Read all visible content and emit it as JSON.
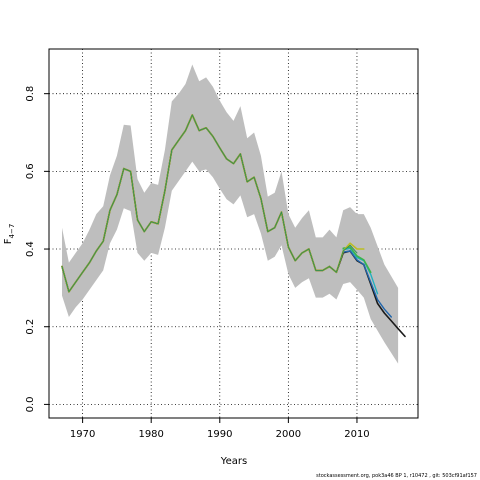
{
  "chart_data": {
    "type": "line",
    "xlabel": "Years",
    "ylabel_main": "F",
    "ylabel_sub": "4−7",
    "xlim": [
      1965.1,
      2018.9
    ],
    "ylim": [
      -0.035,
      0.915
    ],
    "xticks": [
      1970,
      1980,
      1990,
      2000,
      2010
    ],
    "yticks": [
      0.0,
      0.2,
      0.4,
      0.6,
      0.8
    ],
    "ytick_labels": [
      "0.0",
      "0.2",
      "0.4",
      "0.6",
      "0.8"
    ],
    "grid": true,
    "legend": "none",
    "years": [
      1967,
      1968,
      1969,
      1970,
      1971,
      1972,
      1973,
      1974,
      1975,
      1976,
      1977,
      1978,
      1979,
      1980,
      1981,
      1982,
      1983,
      1984,
      1985,
      1986,
      1987,
      1988,
      1989,
      1990,
      1991,
      1992,
      1993,
      1994,
      1995,
      1996,
      1997,
      1998,
      1999,
      2000,
      2001,
      2002,
      2003,
      2004,
      2005,
      2006,
      2007,
      2008,
      2009,
      2010,
      2011
    ],
    "estimate": [
      0.355,
      0.29,
      0.315,
      0.34,
      0.365,
      0.395,
      0.42,
      0.5,
      0.54,
      0.607,
      0.6,
      0.475,
      0.445,
      0.47,
      0.465,
      0.55,
      0.655,
      0.68,
      0.705,
      0.745,
      0.705,
      0.712,
      0.69,
      0.66,
      0.632,
      0.62,
      0.645,
      0.573,
      0.585,
      0.53,
      0.445,
      0.455,
      0.495,
      0.405,
      0.37,
      0.39,
      0.4,
      0.345,
      0.345,
      0.355,
      0.34,
      0.39,
      0.4,
      0.37,
      0.36
    ],
    "upper": [
      0.455,
      0.365,
      0.39,
      0.415,
      0.45,
      0.49,
      0.51,
      0.59,
      0.64,
      0.72,
      0.718,
      0.58,
      0.545,
      0.57,
      0.565,
      0.655,
      0.78,
      0.8,
      0.825,
      0.875,
      0.832,
      0.842,
      0.818,
      0.782,
      0.752,
      0.73,
      0.768,
      0.685,
      0.7,
      0.64,
      0.535,
      0.545,
      0.6,
      0.49,
      0.455,
      0.48,
      0.5,
      0.43,
      0.43,
      0.45,
      0.43,
      0.5,
      0.508,
      0.49,
      0.49
    ],
    "lower": [
      0.28,
      0.225,
      0.25,
      0.27,
      0.295,
      0.32,
      0.345,
      0.415,
      0.45,
      0.505,
      0.498,
      0.39,
      0.37,
      0.39,
      0.385,
      0.455,
      0.55,
      0.575,
      0.6,
      0.625,
      0.6,
      0.605,
      0.585,
      0.555,
      0.528,
      0.515,
      0.538,
      0.482,
      0.49,
      0.44,
      0.37,
      0.38,
      0.41,
      0.335,
      0.3,
      0.315,
      0.325,
      0.275,
      0.275,
      0.285,
      0.27,
      0.31,
      0.315,
      0.295,
      0.275
    ],
    "upper_ext": [
      {
        "x": 2012,
        "y": 0.455
      },
      {
        "x": 2014,
        "y": 0.36
      },
      {
        "x": 2016,
        "y": 0.3
      }
    ],
    "lower_ext": [
      {
        "x": 2012,
        "y": 0.22
      },
      {
        "x": 2014,
        "y": 0.16
      },
      {
        "x": 2016,
        "y": 0.105
      }
    ],
    "series": [
      {
        "color": "#1a1a1a",
        "width": 1.6,
        "values": [
          0.355,
          0.29,
          0.315,
          0.34,
          0.365,
          0.395,
          0.42,
          0.5,
          0.54,
          0.607,
          0.6,
          0.475,
          0.445,
          0.47,
          0.465,
          0.55,
          0.655,
          0.68,
          0.705,
          0.745,
          0.705,
          0.712,
          0.69,
          0.66,
          0.632,
          0.62,
          0.645,
          0.573,
          0.585,
          0.53,
          0.445,
          0.455,
          0.495,
          0.405,
          0.37,
          0.39,
          0.4,
          0.345,
          0.345,
          0.355,
          0.34,
          0.39,
          0.395,
          0.37,
          0.36,
          0.31,
          0.26,
          0.235,
          0.215,
          0.195,
          0.175
        ],
        "start": 1967
      },
      {
        "color": "#2166ac",
        "width": 1.4,
        "points": [
          {
            "x": 2008,
            "y": 0.392
          },
          {
            "x": 2009,
            "y": 0.395
          },
          {
            "x": 2010,
            "y": 0.372
          },
          {
            "x": 2011,
            "y": 0.36
          },
          {
            "x": 2012,
            "y": 0.315
          },
          {
            "x": 2013,
            "y": 0.27
          },
          {
            "x": 2014,
            "y": 0.245
          },
          {
            "x": 2015,
            "y": 0.225
          }
        ]
      },
      {
        "color": "#21b0c0",
        "width": 1.4,
        "points": [
          {
            "x": 2008,
            "y": 0.398
          },
          {
            "x": 2009,
            "y": 0.402
          },
          {
            "x": 2010,
            "y": 0.378
          },
          {
            "x": 2011,
            "y": 0.37
          },
          {
            "x": 2012,
            "y": 0.335
          },
          {
            "x": 2013,
            "y": 0.285
          }
        ]
      },
      {
        "color": "#3cb44b",
        "width": 1.6,
        "points": [
          {
            "x": 2008,
            "y": 0.402
          },
          {
            "x": 2009,
            "y": 0.405
          },
          {
            "x": 2010,
            "y": 0.382
          },
          {
            "x": 2011,
            "y": 0.372
          },
          {
            "x": 2012,
            "y": 0.34
          }
        ]
      },
      {
        "color": "#bcbd22",
        "width": 1.6,
        "values": [
          0.355,
          0.29,
          0.315,
          0.34,
          0.365,
          0.395,
          0.42,
          0.5,
          0.54,
          0.607,
          0.6,
          0.475,
          0.445,
          0.47,
          0.465,
          0.55,
          0.655,
          0.68,
          0.705,
          0.745,
          0.705,
          0.712,
          0.69,
          0.66,
          0.632,
          0.62,
          0.645,
          0.573,
          0.585,
          0.53,
          0.445,
          0.455,
          0.495,
          0.405,
          0.37,
          0.39,
          0.4,
          0.345,
          0.345,
          0.355,
          0.34,
          0.395,
          0.415,
          0.4,
          0.4
        ],
        "start": 1967
      },
      {
        "color": "#2e8b57",
        "width": 0.9,
        "values": [
          0.355,
          0.29,
          0.315,
          0.34,
          0.365,
          0.395,
          0.42,
          0.5,
          0.54,
          0.607,
          0.6,
          0.475,
          0.445,
          0.47,
          0.465,
          0.55,
          0.655,
          0.68,
          0.705,
          0.745,
          0.705,
          0.712,
          0.69,
          0.66,
          0.632,
          0.62,
          0.645,
          0.573,
          0.585,
          0.53,
          0.445,
          0.455,
          0.495,
          0.405,
          0.37,
          0.39,
          0.4,
          0.345,
          0.345,
          0.355,
          0.34,
          0.395,
          0.41,
          0.39
        ],
        "start": 1967
      }
    ]
  },
  "footer_text": "stockassessment.org, pok3a46 BP 1, r10472 , git: 503cf91af157",
  "colors": {
    "band": "#bebebe",
    "axis": "#000000",
    "grid": "#000000"
  }
}
